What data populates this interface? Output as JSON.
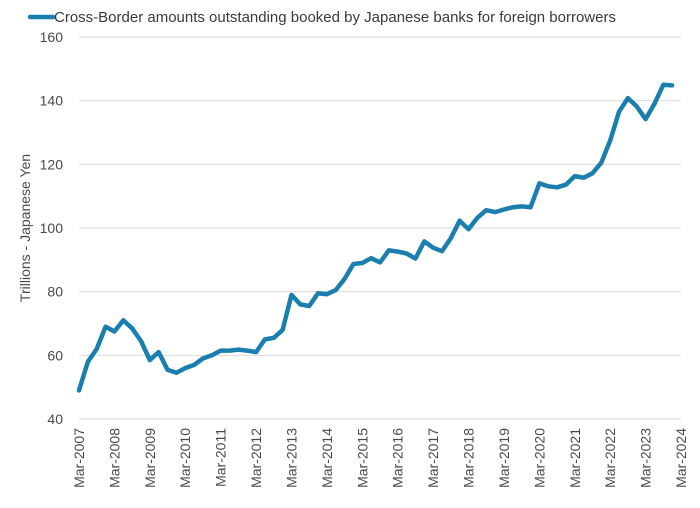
{
  "chart_data": {
    "type": "line",
    "ylabel": "Trillions - Japanese Yen",
    "xlabel": "",
    "ylim": [
      40,
      160
    ],
    "yticks": [
      40,
      60,
      80,
      100,
      120,
      140,
      160
    ],
    "grid": "horizontal",
    "legend_position": "top-left",
    "categories": [
      "Mar-2007",
      "Mar-2008",
      "Mar-2009",
      "Mar-2010",
      "Mar-2011",
      "Mar-2012",
      "Mar-2013",
      "Mar-2014",
      "Mar-2015",
      "Mar-2016",
      "Mar-2017",
      "Mar-2018",
      "Mar-2019",
      "Mar-2020",
      "Mar-2021",
      "Mar-2022",
      "Mar-2023",
      "Mar-2024"
    ],
    "series": [
      {
        "name": "Cross-Border amounts outstanding booked by Japanese banks for foreign borrowers",
        "color": "#1a7fae",
        "x": [
          2007.0,
          2007.25,
          2007.5,
          2007.75,
          2008.0,
          2008.25,
          2008.5,
          2008.75,
          2009.0,
          2009.25,
          2009.5,
          2009.75,
          2010.0,
          2010.25,
          2010.5,
          2010.75,
          2011.0,
          2011.25,
          2011.5,
          2011.75,
          2012.0,
          2012.25,
          2012.5,
          2012.75,
          2013.0,
          2013.25,
          2013.5,
          2013.75,
          2014.0,
          2014.25,
          2014.5,
          2014.75,
          2015.0,
          2015.25,
          2015.5,
          2015.75,
          2016.0,
          2016.25,
          2016.5,
          2016.75,
          2017.0,
          2017.25,
          2017.5,
          2017.75,
          2018.0,
          2018.25,
          2018.5,
          2018.75,
          2019.0,
          2019.25,
          2019.5,
          2019.75,
          2020.0,
          2020.25,
          2020.5,
          2020.75,
          2021.0,
          2021.25,
          2021.5,
          2021.75,
          2022.0,
          2022.25,
          2022.5,
          2022.75,
          2023.0,
          2023.25,
          2023.5,
          2023.75
        ],
        "values": [
          49,
          58,
          62,
          69,
          67.5,
          71,
          68.5,
          64.5,
          58.5,
          61,
          55.5,
          54.5,
          56,
          57,
          59,
          60,
          61.5,
          61.5,
          61.8,
          61.5,
          61,
          65,
          65.5,
          68,
          79,
          76,
          75.5,
          79.5,
          79.2,
          80.5,
          84,
          88.7,
          89,
          90.5,
          89.2,
          93,
          92.6,
          92,
          90.4,
          95.8,
          93.8,
          92.7,
          96.8,
          102.3,
          99.6,
          103.2,
          105.6,
          105,
          105.8,
          106.5,
          106.8,
          106.5,
          114,
          113.1,
          112.8,
          113.6,
          116.3,
          115.8,
          117.2,
          120.5,
          127.5,
          136.5,
          140.8,
          138.2,
          134.2,
          139,
          145,
          144.8
        ]
      }
    ]
  }
}
